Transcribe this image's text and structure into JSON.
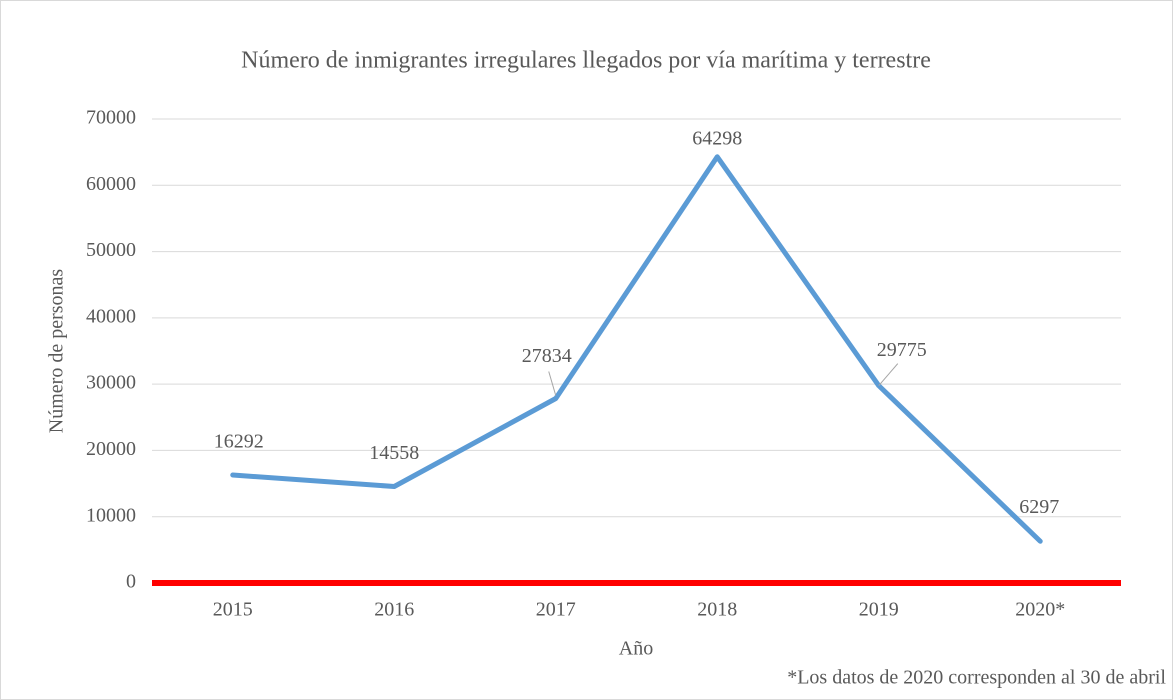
{
  "chart_data": {
    "type": "line",
    "title": "Número de inmigrantes irregulares llegados por vía marítima y terrestre",
    "x_label": "Año",
    "y_label": "Número de personas",
    "annotation": "*Los datos de 2020 corresponden al 30 de abril",
    "categories": [
      "2015",
      "2016",
      "2017",
      "2018",
      "2019",
      "2020*"
    ],
    "series": [
      {
        "name": "Número de personas",
        "color": "#5b9bd5",
        "values": [
          16292,
          14558,
          27834,
          64298,
          29775,
          6297
        ]
      }
    ],
    "ylim": [
      0,
      70000
    ],
    "yticks": [
      0,
      10000,
      20000,
      30000,
      40000,
      50000,
      60000,
      70000
    ],
    "grid": true,
    "zero_line_color": "#ff0000"
  }
}
